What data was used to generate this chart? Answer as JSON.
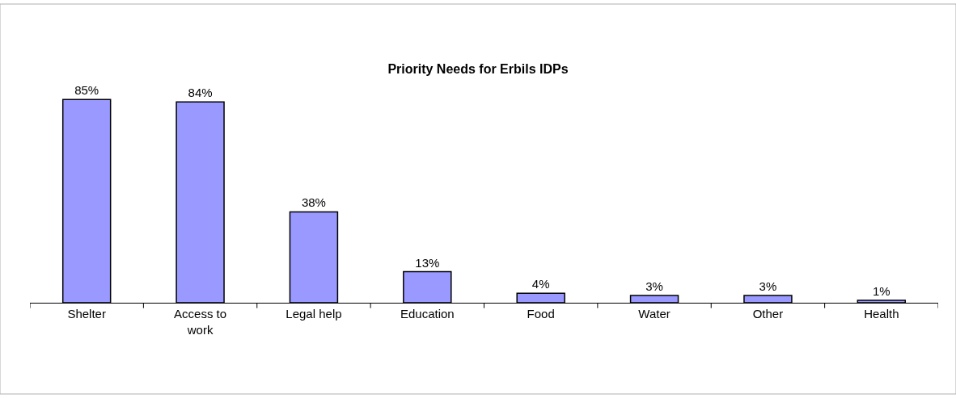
{
  "chart_data": {
    "type": "bar",
    "title": "Priority Needs for Erbils IDPs",
    "categories": [
      "Shelter",
      "Access to work",
      "Legal help",
      "Education",
      "Food",
      "Water",
      "Other",
      "Health"
    ],
    "values": [
      85,
      84,
      38,
      13,
      4,
      3,
      3,
      1
    ],
    "value_labels": [
      "85%",
      "84%",
      "38%",
      "13%",
      "4%",
      "3%",
      "3%",
      "1%"
    ],
    "color": "#9999ff",
    "tick_labels": "x",
    "legend": false
  }
}
